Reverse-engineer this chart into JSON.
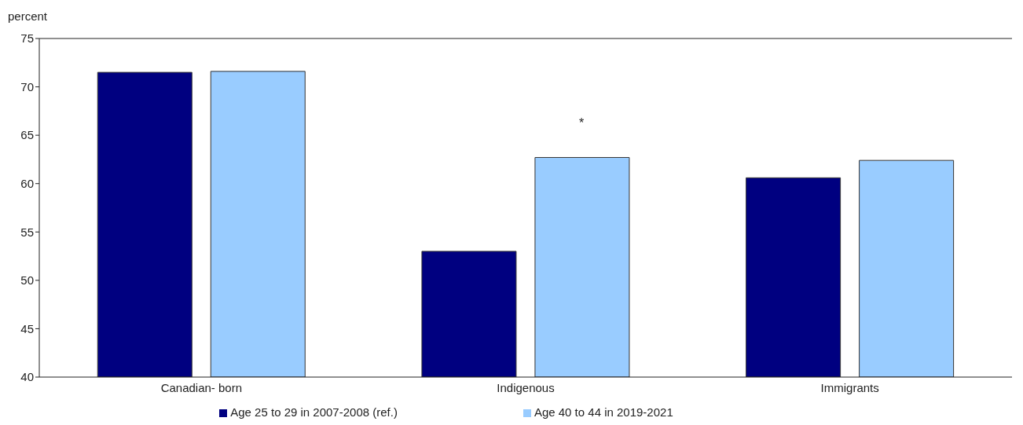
{
  "chart_data": {
    "type": "bar",
    "ylabel": "percent",
    "categories": [
      "Canadian- born",
      "Indigenous",
      "Immigrants"
    ],
    "series": [
      {
        "name": "Age 25 to 29 in 2007-2008 (ref.)",
        "color": "#000080",
        "values": [
          71.5,
          53.0,
          60.6
        ]
      },
      {
        "name": "Age 40 to 44 in 2019-2021",
        "color": "#99ccff",
        "values": [
          71.6,
          62.7,
          62.4
        ]
      }
    ],
    "ylim": [
      40,
      75
    ],
    "yticks": [
      40,
      45,
      50,
      55,
      60,
      65,
      70,
      75
    ],
    "grid": false,
    "legend": "bottom",
    "annotations": [
      "*"
    ]
  }
}
